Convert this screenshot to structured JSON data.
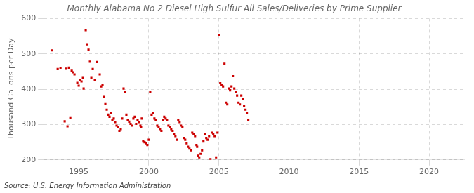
{
  "chart_data": {
    "type": "scatter",
    "title": "Monthly Alabama No 2 Diesel High Sulfur All Sales/Deliveries by Prime Supplier",
    "ylabel": "Thousand Gallons per Day",
    "source": "Source: U.S. Energy Information Administration",
    "color": "#cc0000",
    "marker": "square",
    "grid": true,
    "xlim": [
      1992.5,
      2022.5
    ],
    "ylim": [
      200,
      600
    ],
    "xticks": [
      1995,
      2000,
      2005,
      2010,
      2015,
      2020
    ],
    "yticks": [
      200,
      300,
      400,
      500,
      600
    ],
    "x": [
      1993.1,
      1993.5,
      1993.7,
      1994.0,
      1994.2,
      1994.4,
      1994.1,
      1994.3,
      1994.5,
      1994.6,
      1994.7,
      1994.9,
      1995.0,
      1995.1,
      1995.2,
      1995.3,
      1995.35,
      1995.5,
      1995.6,
      1995.7,
      1995.8,
      1995.9,
      1996.0,
      1996.15,
      1996.3,
      1996.5,
      1996.6,
      1996.7,
      1996.8,
      1996.9,
      1997.0,
      1997.1,
      1997.2,
      1997.3,
      1997.4,
      1997.5,
      1997.6,
      1997.7,
      1997.8,
      1997.9,
      1998.0,
      1998.1,
      1998.2,
      1998.3,
      1998.4,
      1998.5,
      1998.6,
      1998.7,
      1998.8,
      1998.9,
      1999.0,
      1999.1,
      1999.2,
      1999.3,
      1999.4,
      1999.45,
      1999.5,
      1999.6,
      1999.7,
      1999.8,
      1999.9,
      2000.0,
      2000.1,
      2000.2,
      2000.3,
      2000.4,
      2000.5,
      2000.6,
      2000.7,
      2000.8,
      2000.9,
      2001.0,
      2001.1,
      2001.2,
      2001.3,
      2001.4,
      2001.5,
      2001.6,
      2001.7,
      2001.8,
      2001.9,
      2002.0,
      2002.1,
      2002.2,
      2002.3,
      2002.4,
      2002.5,
      2002.6,
      2002.7,
      2002.8,
      2002.9,
      2003.0,
      2003.1,
      2003.2,
      2003.3,
      2003.4,
      2003.45,
      2003.5,
      2003.6,
      2003.7,
      2003.8,
      2003.9,
      2004.0,
      2004.1,
      2004.2,
      2004.3,
      2004.4,
      2004.5,
      2004.6,
      2004.7,
      2004.8,
      2004.9,
      2005.0,
      2005.1,
      2005.2,
      2005.3,
      2005.4,
      2005.5,
      2005.6,
      2005.7,
      2005.8,
      2005.9,
      2006.0,
      2006.1,
      2006.2,
      2006.3,
      2006.4,
      2006.5,
      2006.6,
      2006.7,
      2006.8,
      2006.9,
      2007.0,
      2007.1
    ],
    "values": [
      510,
      457,
      460,
      309,
      295,
      320,
      458,
      461,
      452,
      448,
      442,
      418,
      410,
      425,
      422,
      432,
      402,
      567,
      527,
      512,
      478,
      432,
      457,
      427,
      477,
      442,
      408,
      412,
      378,
      358,
      342,
      328,
      322,
      332,
      312,
      317,
      307,
      297,
      292,
      282,
      287,
      317,
      402,
      392,
      328,
      312,
      308,
      302,
      297,
      317,
      322,
      302,
      312,
      307,
      297,
      292,
      317,
      252,
      250,
      247,
      242,
      257,
      392,
      328,
      332,
      317,
      312,
      297,
      292,
      287,
      282,
      312,
      322,
      317,
      312,
      297,
      292,
      287,
      282,
      272,
      267,
      257,
      312,
      307,
      297,
      292,
      262,
      257,
      247,
      237,
      232,
      227,
      277,
      272,
      267,
      242,
      237,
      212,
      207,
      217,
      227,
      252,
      272,
      262,
      257,
      267,
      202,
      277,
      272,
      267,
      207,
      277,
      552,
      417,
      412,
      408,
      472,
      362,
      357,
      402,
      397,
      408,
      437,
      402,
      392,
      382,
      362,
      357,
      382,
      372,
      352,
      342,
      332,
      312
    ]
  }
}
